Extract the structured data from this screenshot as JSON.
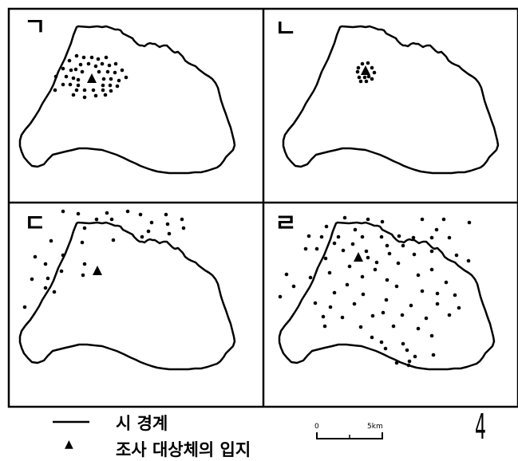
{
  "panels": [
    {
      "id": "a",
      "label": "ㄱ"
    },
    {
      "id": "b",
      "label": "ㄴ"
    },
    {
      "id": "c",
      "label": "ㄷ"
    },
    {
      "id": "d",
      "label": "ㄹ"
    }
  ],
  "legend": {
    "boundary_label": "시 경계",
    "site_label": "조사 대상체의 입지",
    "site_symbol": "▲"
  },
  "scale_bar": {
    "start_label": "0",
    "end_label": "5km"
  },
  "north_arrow": {
    "glyph": "4"
  }
}
